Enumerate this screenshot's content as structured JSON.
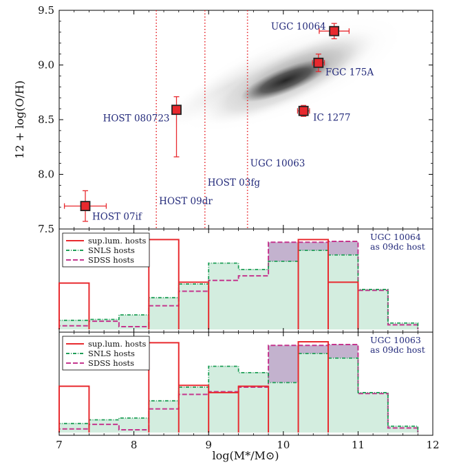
{
  "chart_data": [
    {
      "type": "scatter",
      "panel": "top",
      "ylabel": "12 + log(O/H)",
      "xlim": [
        7,
        12
      ],
      "ylim": [
        7.5,
        9.5
      ],
      "yticks": [
        "7.5",
        "8.0",
        "8.5",
        "9.0",
        "9.5"
      ],
      "background": "SDSS host density (grayscale 2D histogram)",
      "vlines": [
        8.3,
        8.95,
        9.52
      ],
      "vline_labels": [
        "HOST 09dr",
        "HOST 03fg",
        "UGC 10063"
      ],
      "points": [
        {
          "name": "HOST 07if",
          "x": 7.35,
          "y": 7.71,
          "xerr": 0.28,
          "yerr_up": 0.14,
          "yerr_down": 0.14
        },
        {
          "name": "HOST 080723",
          "x": 8.57,
          "y": 8.59,
          "xerr": 0,
          "yerr_up": 0.12,
          "yerr_down": 0.43
        },
        {
          "name": "IC 1277",
          "x": 10.27,
          "y": 8.58,
          "xerr": 0.08,
          "yerr_up": 0.05,
          "yerr_down": 0.05
        },
        {
          "name": "FGC 175A",
          "x": 10.47,
          "y": 9.02,
          "xerr": 0.08,
          "yerr_up": 0.08,
          "yerr_down": 0.08
        },
        {
          "name": "UGC 10064",
          "x": 10.68,
          "y": 9.31,
          "xerr": 0.2,
          "yerr_up": 0.07,
          "yerr_down": 0.07
        }
      ],
      "marker_color": "#e8292e"
    },
    {
      "type": "histogram",
      "panel": "middle",
      "annotation": [
        "UGC 10064",
        "as 09dc host"
      ],
      "legend": [
        "sup.lum. hosts",
        "SNLS hosts",
        "SDSS hosts"
      ],
      "legend_position": "top-left",
      "bin_edges": [
        7.0,
        7.4,
        7.8,
        8.2,
        8.6,
        9.0,
        9.4,
        9.8,
        10.2,
        10.6,
        11.0,
        11.4,
        11.8
      ],
      "series": [
        {
          "name": "sup.lum. hosts",
          "values": [
            0.51,
            0,
            0,
            0.99,
            0.52,
            0,
            0,
            0,
            0.99,
            0.52,
            0,
            0
          ]
        },
        {
          "name": "SNLS hosts",
          "values": [
            0.1,
            0.11,
            0.16,
            0.35,
            0.5,
            0.73,
            0.66,
            0.75,
            0.87,
            0.82,
            0.44,
            0.07
          ]
        },
        {
          "name": "SDSS hosts",
          "values": [
            0.04,
            0.09,
            0.03,
            0.26,
            0.42,
            0.54,
            0.59,
            0.96,
            0.96,
            0.97,
            0.43,
            0.05
          ]
        }
      ]
    },
    {
      "type": "histogram",
      "panel": "bottom",
      "annotation": [
        "UGC 10063",
        "as 09dc host"
      ],
      "legend": [
        "sup.lum. hosts",
        "SNLS hosts",
        "SDSS hosts"
      ],
      "legend_position": "top-left",
      "bin_edges": [
        7.0,
        7.4,
        7.8,
        8.2,
        8.6,
        9.0,
        9.4,
        9.8,
        10.2,
        10.6,
        11.0,
        11.4,
        11.8
      ],
      "series": [
        {
          "name": "sup.lum. hosts",
          "values": [
            0.51,
            0,
            0,
            0.99,
            0.52,
            0.44,
            0.51,
            0,
            1.0,
            0,
            0,
            0
          ]
        },
        {
          "name": "SNLS hosts",
          "values": [
            0.1,
            0.14,
            0.16,
            0.35,
            0.5,
            0.73,
            0.66,
            0.55,
            0.87,
            0.82,
            0.44,
            0.07
          ]
        },
        {
          "name": "SDSS hosts",
          "values": [
            0.04,
            0.09,
            0.03,
            0.26,
            0.42,
            0.45,
            0.5,
            0.96,
            0.96,
            0.97,
            0.43,
            0.05
          ]
        }
      ]
    }
  ],
  "xaxis": {
    "label": "log(M*/M⊙)",
    "ticks": [
      "7",
      "8",
      "9",
      "10",
      "11",
      "12"
    ]
  },
  "colors": {
    "suplum": "#e8292e",
    "snls": "#1f9e57",
    "snls_fill": "#d3eddf",
    "sdss": "#c4358d",
    "sdss_fill": "#b9a5c6",
    "annot": "#22297a"
  }
}
